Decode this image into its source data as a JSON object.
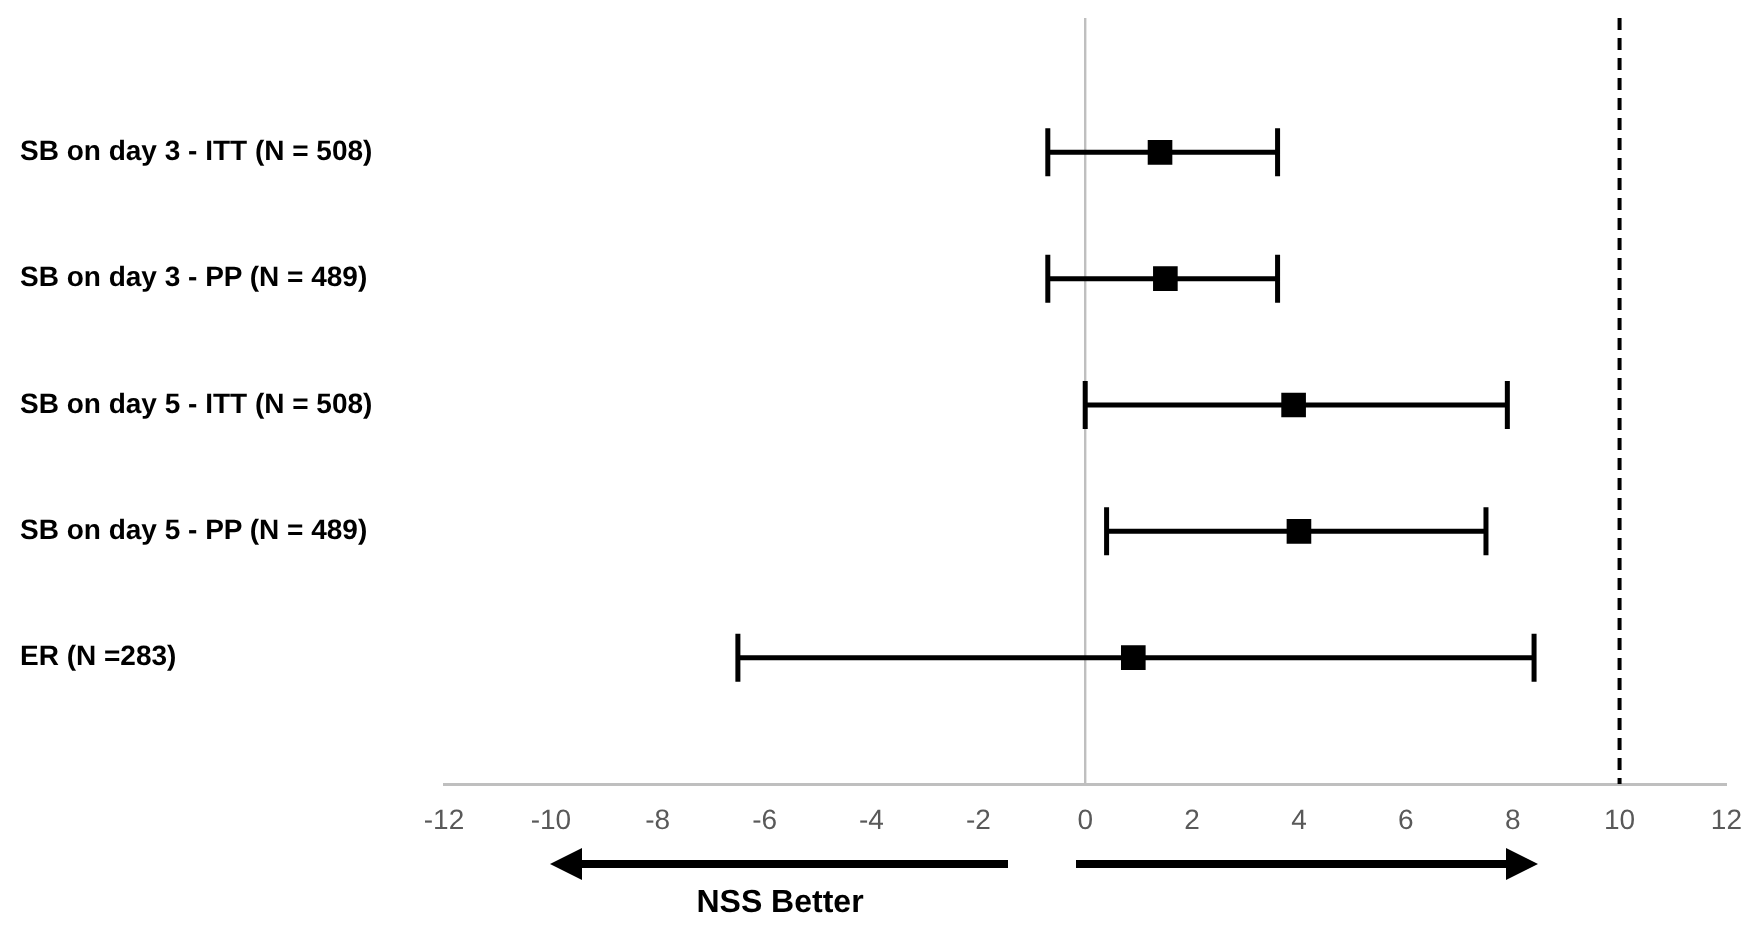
{
  "chart_data": {
    "type": "scatter",
    "orientation": "horizontal",
    "categories": [
      "SB on day 3 - ITT (N = 508)",
      "SB on day 3 - PP (N = 489)",
      "SB on day 5 - ITT (N = 508)",
      "SB on day 5 - PP (N = 489)",
      "ER (N =283)"
    ],
    "series": [
      {
        "color": "#000000",
        "values": [
          1.4,
          1.5,
          3.9,
          4.0,
          0.9
        ],
        "errors": [
          [
            -0.7,
            3.6
          ],
          [
            -0.7,
            3.6
          ],
          [
            0.0,
            7.9
          ],
          [
            0.4,
            7.5
          ],
          [
            -6.5,
            8.4
          ]
        ]
      }
    ],
    "xlim": [
      -12,
      12
    ],
    "xticks": [
      -12,
      -10,
      -8,
      -6,
      -4,
      -2,
      0,
      2,
      4,
      6,
      8,
      10,
      12
    ],
    "marker": "square",
    "grid": false,
    "legend": false,
    "ref_lines": [
      {
        "axis": "x",
        "value": 0,
        "color": "#bfbfbf"
      },
      {
        "axis": "x",
        "value": 10,
        "color": "#000000",
        "line_style": "dashed"
      }
    ],
    "annotations": [
      "NSS Better"
    ]
  }
}
